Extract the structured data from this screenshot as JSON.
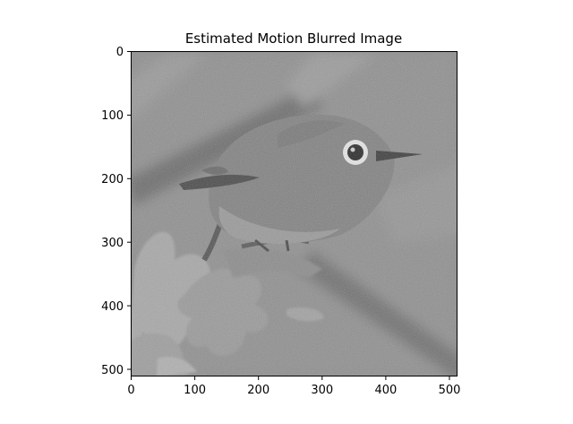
{
  "figure": {
    "title": "Estimated Motion Blurred Image",
    "xticks": [
      "0",
      "100",
      "200",
      "300",
      "400",
      "500"
    ],
    "yticks": [
      "0",
      "100",
      "200",
      "300",
      "400",
      "500"
    ],
    "image": {
      "subject": "grayscale noisy motion-blurred photo of a small bird perched on a branch with blossoms",
      "colormap": "gray"
    },
    "axes": {
      "xrange": [
        0,
        512
      ],
      "yrange": [
        0,
        512
      ],
      "yinverted": true
    }
  }
}
